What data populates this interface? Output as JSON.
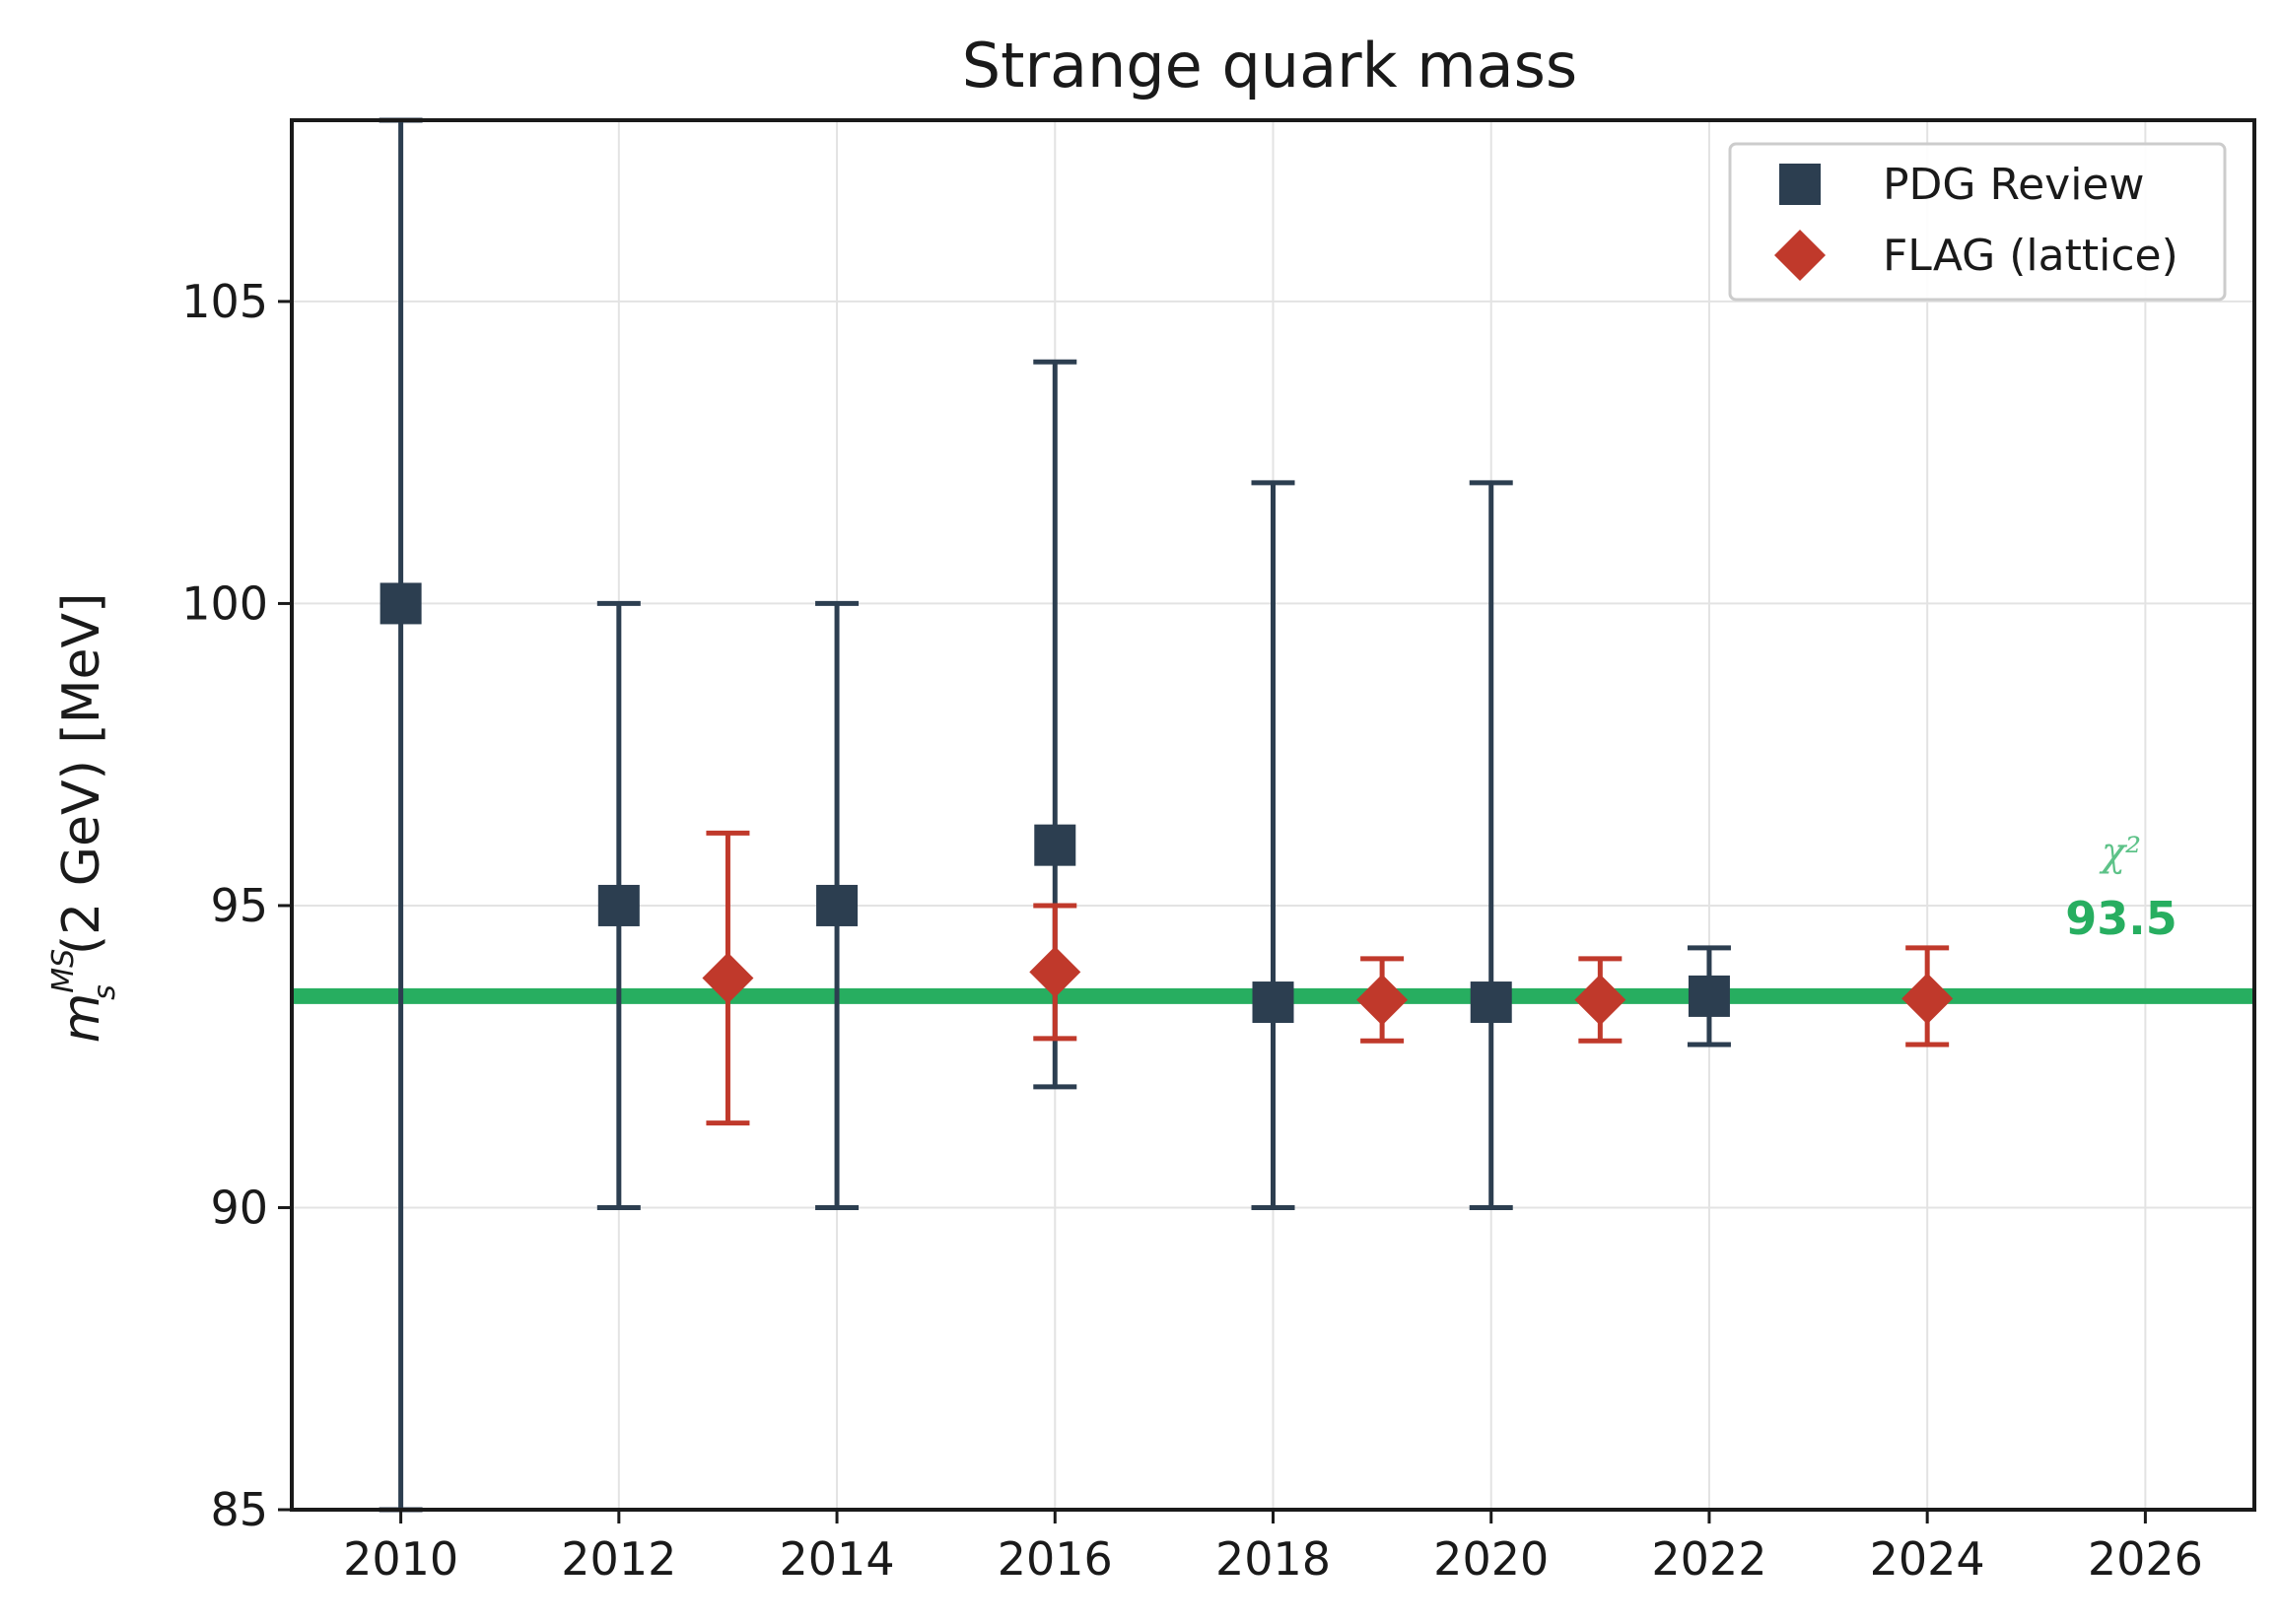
{
  "chart_data": {
    "type": "scatter",
    "title": "Strange quark mass",
    "ylabel": "m_s^{MS}(2 GeV) [MeV]",
    "ylabel_parts": {
      "symbol": "m",
      "subscript": "s",
      "superscript": "MS",
      "rest": "(2 GeV) [MeV]"
    },
    "xlabel": "",
    "xlim": [
      2009.0,
      2027.0
    ],
    "ylim": [
      85,
      108
    ],
    "x_ticks": [
      "2010",
      "2012",
      "2014",
      "2016",
      "2018",
      "2020",
      "2022",
      "2024",
      "2026"
    ],
    "y_ticks": [
      "85",
      "90",
      "95",
      "100",
      "105"
    ],
    "grid": true,
    "legend_position": "top-right",
    "series": [
      {
        "name": "PDG Review",
        "marker": "square",
        "color": "#2c3e50",
        "points": [
          {
            "x": 2010,
            "y": 100.0,
            "lo": 85.0,
            "hi": 108.0
          },
          {
            "x": 2012,
            "y": 95.0,
            "lo": 90.0,
            "hi": 100.0
          },
          {
            "x": 2014,
            "y": 95.0,
            "lo": 90.0,
            "hi": 100.0
          },
          {
            "x": 2016,
            "y": 96.0,
            "lo": 92.0,
            "hi": 104.0
          },
          {
            "x": 2018,
            "y": 93.4,
            "lo": 90.0,
            "hi": 102.0
          },
          {
            "x": 2020,
            "y": 93.4,
            "lo": 90.0,
            "hi": 102.0
          },
          {
            "x": 2022,
            "y": 93.5,
            "lo": 92.7,
            "hi": 94.3
          }
        ]
      },
      {
        "name": "FLAG (lattice)",
        "marker": "diamond",
        "color": "#c0392b",
        "points": [
          {
            "x": 2013,
            "y": 93.8,
            "lo": 91.4,
            "hi": 96.2
          },
          {
            "x": 2016,
            "y": 93.9,
            "lo": 92.8,
            "hi": 95.0
          },
          {
            "x": 2019,
            "y": 93.44,
            "lo": 92.76,
            "hi": 94.12
          },
          {
            "x": 2021,
            "y": 93.44,
            "lo": 92.76,
            "hi": 94.12
          },
          {
            "x": 2024,
            "y": 93.46,
            "lo": 92.7,
            "hi": 94.3
          }
        ]
      }
    ],
    "reference_line": {
      "y": 93.5,
      "color": "#27ae60",
      "label_top": "χ²",
      "label_value": "93.5"
    }
  }
}
